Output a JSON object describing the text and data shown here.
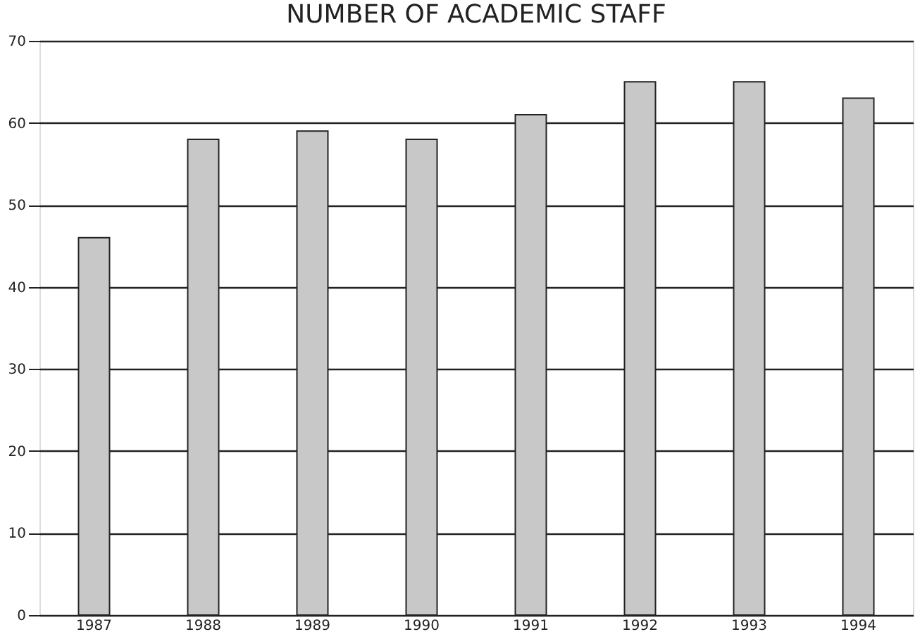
{
  "chart_data": {
    "type": "bar",
    "title": "NUMBER OF ACADEMIC STAFF",
    "categories": [
      "1987",
      "1988",
      "1989",
      "1990",
      "1991",
      "1992",
      "1993",
      "1994"
    ],
    "values": [
      46,
      58,
      59,
      58,
      61,
      65,
      65,
      63
    ],
    "color": "#c8c8c8",
    "ylim": [
      0,
      70
    ],
    "yticks": [
      0,
      10,
      20,
      30,
      40,
      50,
      60,
      70
    ],
    "grid": "y"
  }
}
